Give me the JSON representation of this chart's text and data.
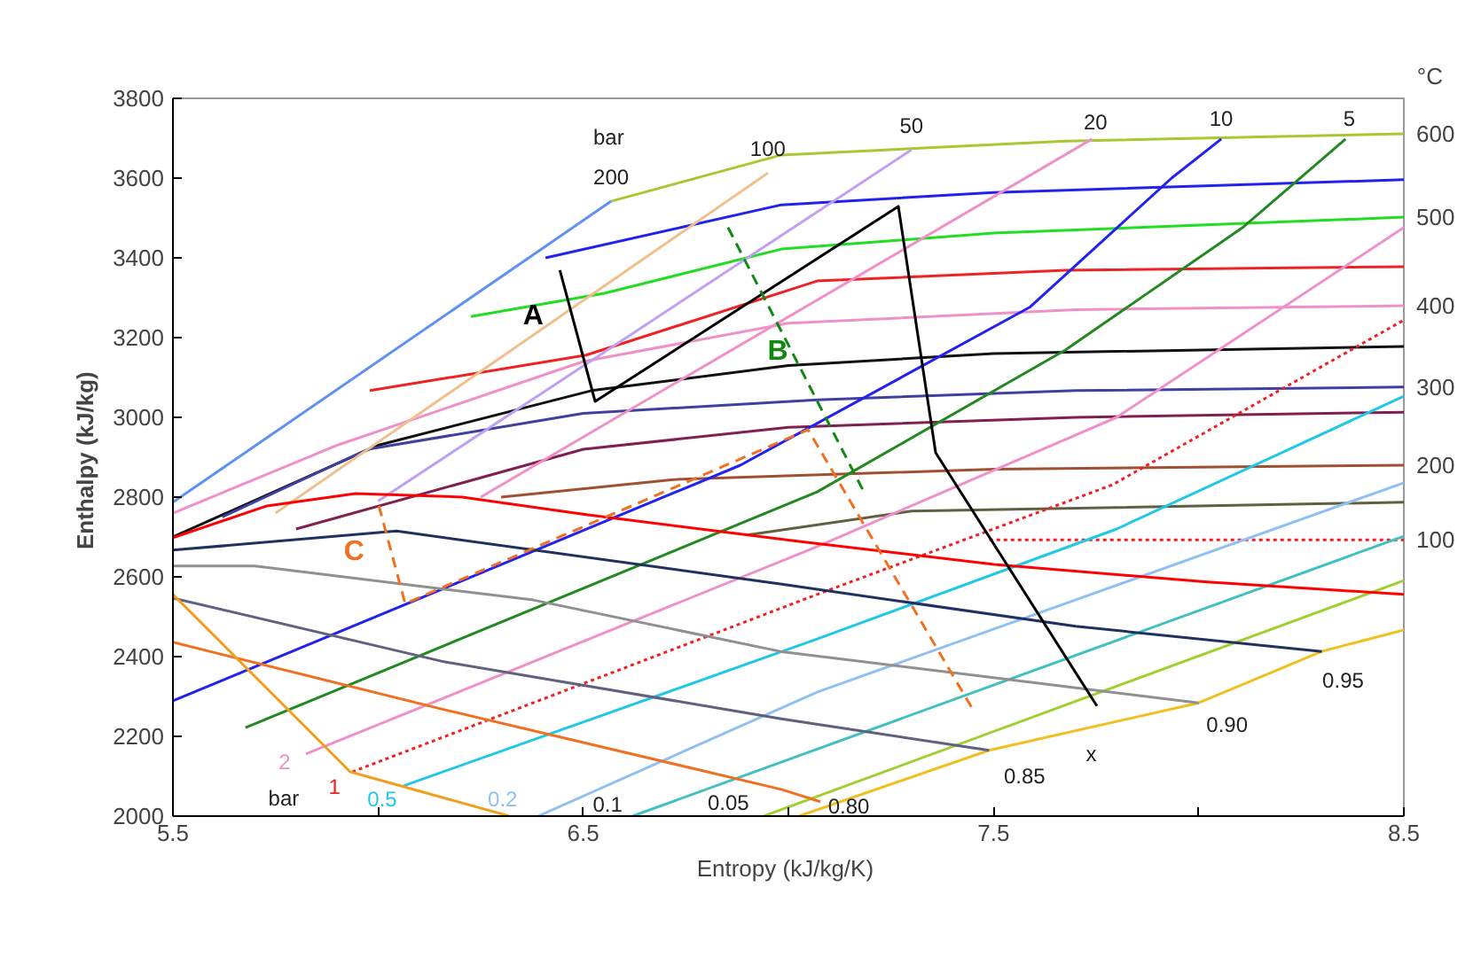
{
  "chart_data": {
    "type": "line",
    "xlabel": "Entropy  (kJ/kg/K)",
    "ylabel": "Enthalpy  (kJ/kg)",
    "xlim": [
      5.5,
      8.5
    ],
    "ylim": [
      2000,
      3800
    ],
    "xticks": [
      5.5,
      {
        "value": 6,
        "label": null
      },
      6.5,
      {
        "value": 7,
        "label": null
      },
      7.5,
      {
        "value": 8,
        "label": null
      },
      8.5
    ],
    "yticks": [
      2000,
      2200,
      2400,
      2600,
      2800,
      3000,
      3200,
      3400,
      3600,
      3800
    ],
    "grid": false,
    "series": [
      {
        "color": "#a8c832",
        "x": [
          6.568,
          6.983,
          7.675,
          8.5
        ],
        "values": [
          3542,
          3658,
          3693,
          3711
        ]
      },
      {
        "color": "#2222ee",
        "x": [
          6.408,
          6.983,
          7.5,
          8.5
        ],
        "values": [
          3400,
          3533,
          3564,
          3596
        ]
      },
      {
        "color": "#22dd22",
        "x": [
          6.226,
          6.551,
          6.983,
          7.5,
          8.5
        ],
        "values": [
          3253,
          3311,
          3422,
          3462,
          3502
        ]
      },
      {
        "color": "#ee2222",
        "x": [
          5.98,
          6.507,
          7.07,
          7.675,
          8.5
        ],
        "values": [
          3067,
          3156,
          3342,
          3369,
          3378
        ]
      },
      {
        "color": "#f090c8",
        "x": [
          5.5,
          5.9,
          6.5,
          7.0,
          7.7,
          8.5
        ],
        "values": [
          2760,
          2930,
          3140,
          3236,
          3270,
          3280
        ]
      },
      {
        "color": "#111111",
        "x": [
          5.5,
          6.0,
          6.52,
          7.0,
          7.5,
          8.5
        ],
        "values": [
          2700,
          2930,
          3067,
          3130,
          3160,
          3178
        ]
      },
      {
        "color": "#4040a0",
        "x": [
          5.62,
          5.975,
          6.5,
          7.07,
          7.7,
          8.5
        ],
        "values": [
          2750,
          2920,
          3010,
          3044,
          3067,
          3076
        ]
      },
      {
        "color": "#802050",
        "x": [
          5.8,
          6.5,
          7.0,
          7.7,
          8.5
        ],
        "values": [
          2720,
          2920,
          2975,
          3000,
          3013
        ]
      },
      {
        "color": "#a05030",
        "x": [
          6.3,
          6.72,
          7.5,
          8.5
        ],
        "values": [
          2800,
          2844,
          2870,
          2880
        ]
      },
      {
        "color": "#606040",
        "x": [
          6.9,
          7.3,
          8.5
        ],
        "values": [
          2705,
          2765,
          2787
        ]
      },
      {
        "color": "#ee2222",
        "line_style": "dotted",
        "x": [
          7.49,
          8.5
        ],
        "values": [
          2693,
          2693
        ]
      },
      {
        "color": "#6090f0",
        "x": [
          5.5,
          6.568
        ],
        "values": [
          2787,
          3542
        ]
      },
      {
        "color": "#f0c090",
        "x": [
          5.75,
          6.95
        ],
        "values": [
          2760,
          3613
        ]
      },
      {
        "color": "#c0a0f0",
        "x": [
          6.0,
          7.3
        ],
        "values": [
          2790,
          3671
        ]
      },
      {
        "color": "#f090c8",
        "x": [
          6.25,
          7.74
        ],
        "values": [
          2800,
          3698
        ]
      },
      {
        "color": "#2222ee",
        "x": [
          5.5,
          6.883,
          7.588,
          7.934,
          8.055
        ],
        "values": [
          2289,
          2880,
          3276,
          3600,
          3698
        ]
      },
      {
        "color": "#228822",
        "x": [
          5.677,
          7.07,
          7.675,
          8.107,
          8.358
        ],
        "values": [
          2222,
          2813,
          3169,
          3476,
          3698
        ]
      },
      {
        "name": "2",
        "color": "#f090c8",
        "x": [
          5.824,
          7.07,
          7.8,
          8.5
        ],
        "values": [
          2156,
          2676,
          3000,
          3476
        ]
      },
      {
        "name": "1",
        "color": "#ee2222",
        "line_style": "dotted",
        "x": [
          5.937,
          7.07,
          7.79,
          8.5
        ],
        "values": [
          2111,
          2556,
          2831,
          3244
        ]
      },
      {
        "name": "0.5",
        "color": "#20c8e8",
        "x": [
          6.062,
          7.07,
          7.8,
          8.5
        ],
        "values": [
          2076,
          2444,
          2720,
          3053
        ]
      },
      {
        "name": "0.2",
        "color": "#90c0f0",
        "x": [
          6.39,
          7.07,
          8.5
        ],
        "values": [
          2000,
          2311,
          2836
        ]
      },
      {
        "color": "#40c0c0",
        "x": [
          6.62,
          8.5
        ],
        "values": [
          2000,
          2702
        ]
      },
      {
        "color": "#a0d030",
        "x": [
          6.94,
          8.5
        ],
        "values": [
          2000,
          2591
        ]
      },
      {
        "color": "#f0c020",
        "x": [
          7.026,
          7.489,
          8.0,
          8.3,
          8.5
        ],
        "values": [
          2000,
          2165,
          2284,
          2413,
          2467
        ]
      },
      {
        "color": "#203060",
        "x": [
          5.5,
          6.045,
          6.98,
          7.7,
          8.3
        ],
        "values": [
          2667,
          2715,
          2582,
          2476,
          2413
        ]
      },
      {
        "color": "#909090",
        "x": [
          5.5,
          5.7,
          6.378,
          6.98,
          8.0
        ],
        "values": [
          2627,
          2627,
          2542,
          2413,
          2284
        ]
      },
      {
        "color": "#606080",
        "x": [
          5.5,
          6.161,
          6.983,
          7.489
        ],
        "values": [
          2547,
          2387,
          2244,
          2165
        ]
      },
      {
        "color": "#f07020",
        "x": [
          5.5,
          6.161,
          6.983,
          7.078
        ],
        "values": [
          2436,
          2267,
          2067,
          2036
        ]
      },
      {
        "color": "#f0a020",
        "x": [
          5.5,
          5.932,
          6.32
        ],
        "values": [
          2556,
          2111,
          2000
        ]
      },
      {
        "color": "#ff0000",
        "x": [
          5.5,
          5.729,
          5.945,
          6.205,
          6.507,
          7.026,
          7.502,
          8.02,
          8.5
        ],
        "values": [
          2698,
          2778,
          2809,
          2800,
          2756,
          2689,
          2631,
          2587,
          2556
        ]
      },
      {
        "name": "A",
        "color": "#000000",
        "x": [
          6.443,
          6.529,
          7.268,
          7.359,
          7.752
        ],
        "values": [
          3369,
          3040,
          3529,
          2911,
          2276
        ]
      },
      {
        "name": "B",
        "color": "#118811",
        "line_style": "dashed",
        "x": [
          6.853,
          7.186
        ],
        "values": [
          3476,
          2809
        ]
      },
      {
        "name": "C",
        "color": "#f07020",
        "line_style": "dashed",
        "x": [
          6.002,
          6.066,
          7.048,
          7.45
        ],
        "values": [
          2778,
          2533,
          2969,
          2267
        ]
      }
    ],
    "annotations": [
      "bar",
      "bar",
      "x",
      "°C",
      {
        "text": "600",
        "x": 8.5,
        "y": 3711
      },
      {
        "text": "500",
        "x": 8.5,
        "y": 3502
      },
      {
        "text": "400",
        "x": 8.5,
        "y": 3280
      },
      {
        "text": "300",
        "x": 8.5,
        "y": 3076
      },
      {
        "text": "200",
        "x": 8.5,
        "y": 2880
      },
      {
        "text": "100",
        "x": 8.5,
        "y": 2693
      },
      {
        "text": "0.1",
        "x": 6.62,
        "y": 2000
      },
      {
        "text": "0.05",
        "x": 6.94,
        "y": 2000
      },
      {
        "text": "0.80",
        "x": 7.078,
        "y": 2036
      },
      {
        "text": "200",
        "x": 6.568,
        "y": 3542
      },
      {
        "text": "100",
        "x": 6.95,
        "y": 3613
      },
      {
        "text": "50",
        "x": 7.3,
        "y": 3671
      },
      {
        "text": "20",
        "x": 7.74,
        "y": 3698
      },
      {
        "text": "10",
        "x": 8.055,
        "y": 3698
      },
      {
        "text": "5",
        "x": 8.358,
        "y": 3698
      },
      {
        "text": "0.95",
        "x": 8.3,
        "y": 2413
      },
      {
        "text": "0.90",
        "x": 8.0,
        "y": 2284
      },
      {
        "text": "0.85",
        "x": 7.489,
        "y": 2165
      }
    ]
  }
}
